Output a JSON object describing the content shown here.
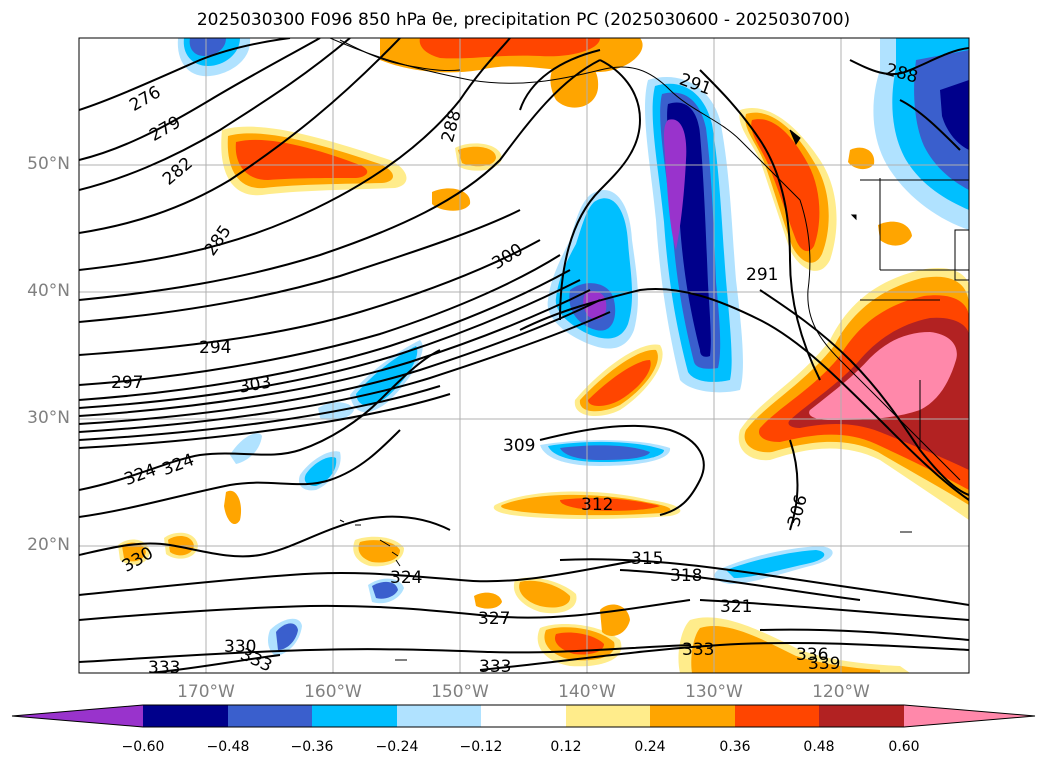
{
  "title": "2025030300 F096 850 hPa θe, precipitation PC (2025030600 - 2025030700)",
  "map": {
    "extent": {
      "lon_min": -180,
      "lon_max": -110,
      "lat_min": 10,
      "lat_max": 60
    },
    "lat_ticks": [
      {
        "lat": 50,
        "label": "50°N"
      },
      {
        "lat": 40,
        "label": "40°N"
      },
      {
        "lat": 30,
        "label": "30°N"
      },
      {
        "lat": 20,
        "label": "20°N"
      }
    ],
    "lon_ticks": [
      {
        "lon": -170,
        "label": "170°W"
      },
      {
        "lon": -160,
        "label": "160°W"
      },
      {
        "lon": -150,
        "label": "150°W"
      },
      {
        "lon": -140,
        "label": "140°W"
      },
      {
        "lon": -130,
        "label": "130°W"
      },
      {
        "lon": -120,
        "label": "120°W"
      }
    ],
    "contour_labels": [
      "276",
      "279",
      "282",
      "285",
      "288",
      "291",
      "294",
      "297",
      "300",
      "303",
      "306",
      "309",
      "312",
      "315",
      "318",
      "321",
      "324",
      "327",
      "330",
      "333",
      "336",
      "339"
    ]
  },
  "colorbar": {
    "ticks": [
      "−0.60",
      "−0.48",
      "−0.36",
      "−0.24",
      "−0.12",
      "0.12",
      "0.24",
      "0.36",
      "0.48",
      "0.60"
    ],
    "colors": [
      "#9933cc",
      "#00008b",
      "#3a5fcd",
      "#00bfff",
      "#b0e2ff",
      "#ffffff",
      "#ffec8b",
      "#ffa500",
      "#ff4500",
      "#b22222",
      "#ff88aa"
    ]
  },
  "colors": {
    "purple": "#9933cc",
    "navy": "#00008b",
    "blue": "#3a5fcd",
    "cyan": "#00bfff",
    "lightblue": "#b0e2ff",
    "yellow": "#ffec8b",
    "orange": "#ffa500",
    "red": "#ff4500",
    "darkred": "#b22222",
    "pink": "#ff88aa"
  }
}
